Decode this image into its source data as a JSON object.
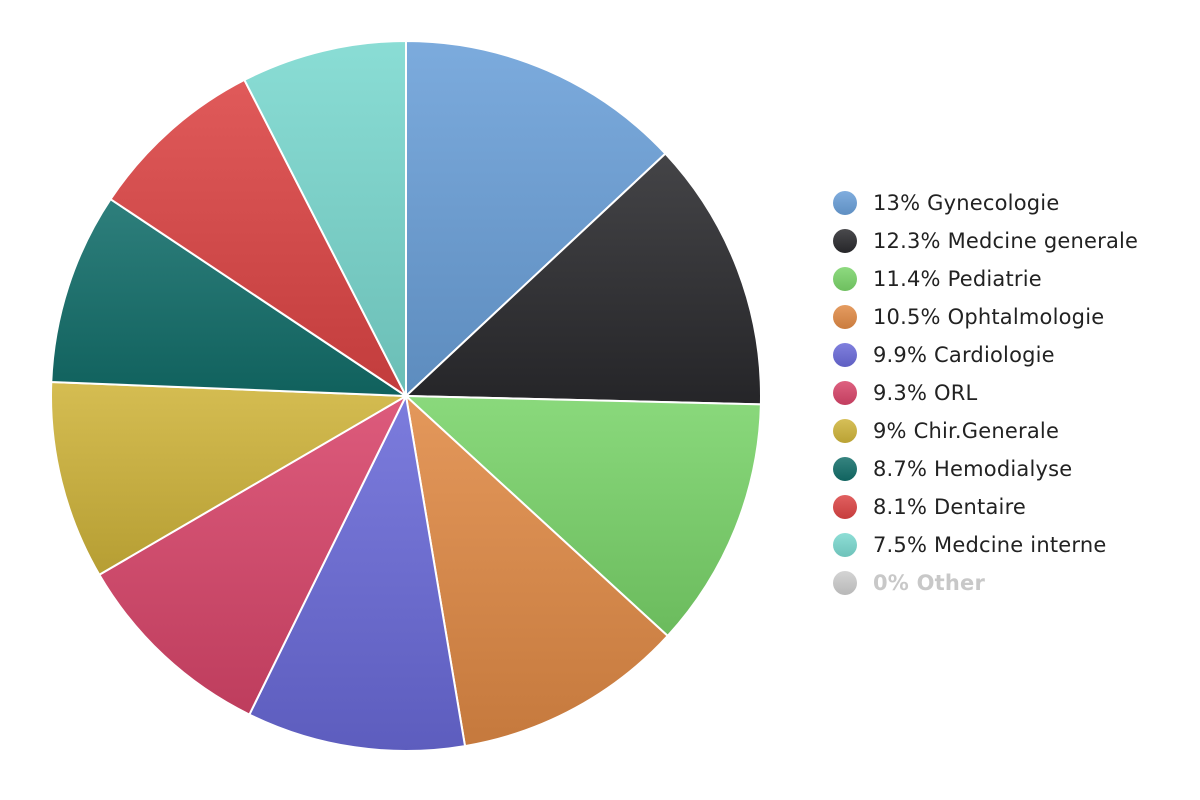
{
  "chart_data": {
    "type": "pie",
    "title": "",
    "legend_position": "right",
    "slices": [
      {
        "label": "Gynecologie",
        "value": 13,
        "display": "13%",
        "color": "#6a9fd8"
      },
      {
        "label": "Medcine generale",
        "value": 12.3,
        "display": "12.3%",
        "color": "#2a2a2e"
      },
      {
        "label": "Pediatrie",
        "value": 11.4,
        "display": "11.4%",
        "color": "#7ad46a"
      },
      {
        "label": "Ophtalmologie",
        "value": 10.5,
        "display": "10.5%",
        "color": "#e08a45"
      },
      {
        "label": "Cardiologie",
        "value": 9.9,
        "display": "9.9%",
        "color": "#6a6ad8"
      },
      {
        "label": "ORL",
        "value": 9.3,
        "display": "9.3%",
        "color": "#d8456a"
      },
      {
        "label": "Chir.Generale",
        "value": 9,
        "display": "9%",
        "color": "#cfb43a"
      },
      {
        "label": "Hemodialyse",
        "value": 8.7,
        "display": "8.7%",
        "color": "#126e6a"
      },
      {
        "label": "Dentaire",
        "value": 8.1,
        "display": "8.1%",
        "color": "#dc4444"
      },
      {
        "label": "Medcine interne",
        "value": 7.5,
        "display": "7.5%",
        "color": "#7ad8cf"
      },
      {
        "label": "Other",
        "value": 0,
        "display": "0%",
        "color": "#cccccc",
        "muted": true
      }
    ]
  }
}
